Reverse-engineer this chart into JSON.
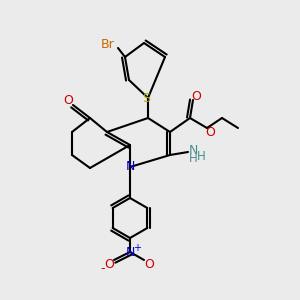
{
  "background_color": "#ebebeb",
  "atom_colors": {
    "C": "#000000",
    "N": "#0000cc",
    "O": "#cc0000",
    "S": "#aaaa00",
    "Br": "#cc6600",
    "NH": "#4a9090"
  },
  "figsize": [
    3.0,
    3.0
  ],
  "dpi": 100
}
